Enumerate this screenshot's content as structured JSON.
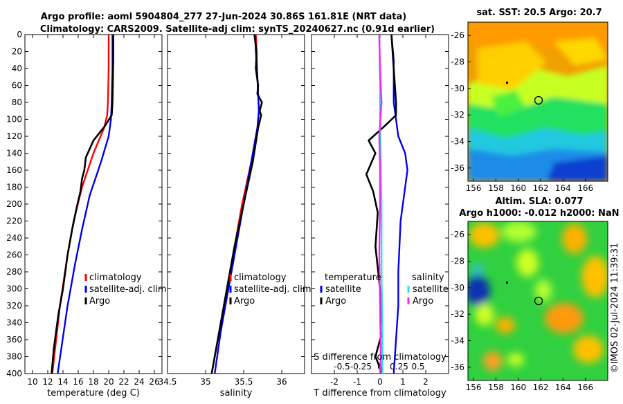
{
  "header": {
    "line1": "Argo profile: aoml 5904804_277 27-Jun-2024 30.86S 161.81E (NRT data)",
    "line2": "Climatology: CARS2009. Satellite-adj clim: synTS_20240627.nc (0.91d earlier)"
  },
  "footer": {
    "stamp": "©IMOS 02-Jul-2024 11:39:31"
  },
  "colors": {
    "climatology": "#ff0000",
    "satellite": "#0000ee",
    "argo": "#000000",
    "salinity_sat": "#22e5e5",
    "salinity_argo": "#ff22ff"
  },
  "chart_data": [
    {
      "id": "temperature",
      "type": "line",
      "xlabel": "temperature (deg C)",
      "ylabel": "",
      "xlim": [
        9,
        27
      ],
      "ylim": [
        0,
        400
      ],
      "y_reversed": true,
      "xticks": [
        10,
        12,
        14,
        16,
        18,
        20,
        22,
        24,
        26
      ],
      "yticks": [
        0,
        20,
        40,
        60,
        80,
        100,
        120,
        140,
        160,
        180,
        200,
        220,
        240,
        260,
        280,
        300,
        320,
        340,
        360,
        380,
        400
      ],
      "legend": {
        "position": "lower-right",
        "entries": [
          "climatology",
          "satellite-adj. clim",
          "Argo"
        ]
      },
      "series": [
        {
          "name": "climatology",
          "color": "#ff0000",
          "x": [
            20.0,
            20.0,
            19.9,
            19.8,
            19.4,
            18.0,
            16.5,
            15.4,
            14.6,
            13.6,
            12.6
          ],
          "y": [
            0,
            40,
            80,
            95,
            110,
            140,
            180,
            220,
            260,
            320,
            400
          ]
        },
        {
          "name": "satellite-adj. clim",
          "color": "#0000ee",
          "x": [
            20.5,
            20.5,
            20.4,
            20.3,
            20.0,
            19.0,
            17.5,
            16.5,
            15.6,
            14.6,
            13.3
          ],
          "y": [
            0,
            40,
            80,
            100,
            120,
            150,
            190,
            230,
            270,
            320,
            400
          ]
        },
        {
          "name": "Argo",
          "color": "#000000",
          "x": [
            20.6,
            20.6,
            20.5,
            20.4,
            19.5,
            18.0,
            17.0,
            16.8,
            16.5,
            16.3,
            15.9,
            15.2,
            14.6,
            14.0,
            13.4,
            12.8,
            12.5
          ],
          "y": [
            0,
            30,
            80,
            95,
            108,
            125,
            145,
            160,
            170,
            185,
            200,
            230,
            260,
            300,
            330,
            370,
            400
          ]
        }
      ]
    },
    {
      "id": "salinity",
      "type": "line",
      "xlabel": "salinity",
      "ylabel": "",
      "xlim": [
        34.5,
        36.3
      ],
      "ylim": [
        0,
        400
      ],
      "y_reversed": true,
      "xticks": [
        34.5,
        35,
        35.5,
        36
      ],
      "legend": {
        "position": "lower-right",
        "entries": [
          "climatology",
          "satellite-adj. clim",
          "Argo"
        ]
      },
      "series": [
        {
          "name": "climatology",
          "color": "#ff0000",
          "x": [
            35.66,
            35.67,
            35.68,
            35.7,
            35.68,
            35.6,
            35.48,
            35.38,
            35.28,
            35.18,
            35.08
          ],
          "y": [
            0,
            20,
            50,
            90,
            110,
            150,
            200,
            250,
            300,
            350,
            400
          ]
        },
        {
          "name": "satellite-adj. clim",
          "color": "#0000ee",
          "x": [
            35.65,
            35.66,
            35.68,
            35.7,
            35.68,
            35.6,
            35.5,
            35.4,
            35.3,
            35.2,
            35.12
          ],
          "y": [
            0,
            20,
            50,
            90,
            110,
            150,
            200,
            250,
            300,
            350,
            400
          ]
        },
        {
          "name": "Argo",
          "color": "#000000",
          "x": [
            35.64,
            35.67,
            35.66,
            35.69,
            35.68,
            35.74,
            35.71,
            35.73,
            35.69,
            35.62,
            35.5,
            35.38,
            35.28,
            35.18,
            35.08
          ],
          "y": [
            0,
            20,
            40,
            60,
            70,
            80,
            90,
            95,
            110,
            150,
            200,
            250,
            300,
            350,
            400
          ]
        }
      ]
    },
    {
      "id": "difference",
      "type": "line",
      "xlabel": "T difference from climatology",
      "xlabel_top": "S difference from climatology",
      "xlim": [
        -3,
        3
      ],
      "ylim": [
        0,
        400
      ],
      "y_reversed": true,
      "xticks": [
        -2,
        -1,
        0,
        1,
        2
      ],
      "xtick_labels": [
        "-2",
        "-1",
        "0",
        "1",
        "2"
      ],
      "s_xticks": [
        -0.5,
        -0.25,
        0,
        0.25,
        0.5
      ],
      "s_xtick_labels": [
        "-0.5",
        "-0.25",
        "0",
        "0.25",
        "0.5"
      ],
      "legend_temperature": {
        "title": "temperature",
        "entries": [
          "satellite",
          "Argo"
        ]
      },
      "legend_salinity": {
        "title": "salinity",
        "entries": [
          "satellite",
          "Argo"
        ]
      },
      "series": [
        {
          "name": "temperature satellite",
          "color": "#0000ee",
          "x": [
            0.5,
            0.6,
            0.6,
            0.7,
            0.8,
            1.1,
            1.2,
            1.1,
            0.9,
            0.8,
            0.8,
            0.7,
            0.6
          ],
          "y": [
            0,
            30,
            80,
            100,
            120,
            140,
            160,
            180,
            220,
            280,
            320,
            360,
            400
          ]
        },
        {
          "name": "temperature Argo",
          "color": "#000000",
          "x": [
            0.5,
            0.6,
            0.7,
            0.7,
            0.2,
            -0.5,
            -0.2,
            -0.6,
            -0.3,
            -0.1,
            -0.2,
            0.0,
            0.1,
            -0.2,
            0.1
          ],
          "y": [
            0,
            40,
            80,
            95,
            108,
            125,
            140,
            165,
            185,
            210,
            250,
            300,
            350,
            380,
            400
          ]
        },
        {
          "name": "salinity satellite",
          "color": "#22e5e5",
          "x": [
            -0.01,
            0.0,
            0.0,
            0.01,
            0.02,
            0.02,
            0.03,
            0.03
          ],
          "y": [
            0,
            60,
            100,
            150,
            200,
            280,
            350,
            400
          ]
        },
        {
          "name": "salinity Argo",
          "color": "#ff22ff",
          "x": [
            -0.01,
            0.0,
            0.02,
            -0.01,
            0.0,
            0.0,
            -0.01,
            0.0,
            0.01,
            0.0
          ],
          "y": [
            0,
            40,
            80,
            120,
            160,
            200,
            260,
            320,
            380,
            400
          ]
        }
      ]
    },
    {
      "id": "sst_map",
      "type": "heatmap",
      "title": "sat. SST: 20.5 Argo: 20.7",
      "xlim": [
        155.5,
        168
      ],
      "ylim": [
        -37,
        -25
      ],
      "xticks": [
        156,
        158,
        160,
        162,
        164,
        166
      ],
      "yticks": [
        -26,
        -28,
        -30,
        -32,
        -34,
        -36
      ],
      "float_position": [
        161.81,
        -30.86
      ]
    },
    {
      "id": "sla_map",
      "type": "heatmap",
      "title": "Altim. SLA: 0.077",
      "subtitle": "Argo h1000: -0.012 h2000: NaN",
      "xlim": [
        155.5,
        168
      ],
      "ylim": [
        -37,
        -25
      ],
      "xticks": [
        156,
        158,
        160,
        162,
        164,
        166
      ],
      "yticks": [
        -26,
        -28,
        -30,
        -32,
        -34,
        -36
      ],
      "float_position": [
        161.81,
        -30.86
      ]
    }
  ]
}
